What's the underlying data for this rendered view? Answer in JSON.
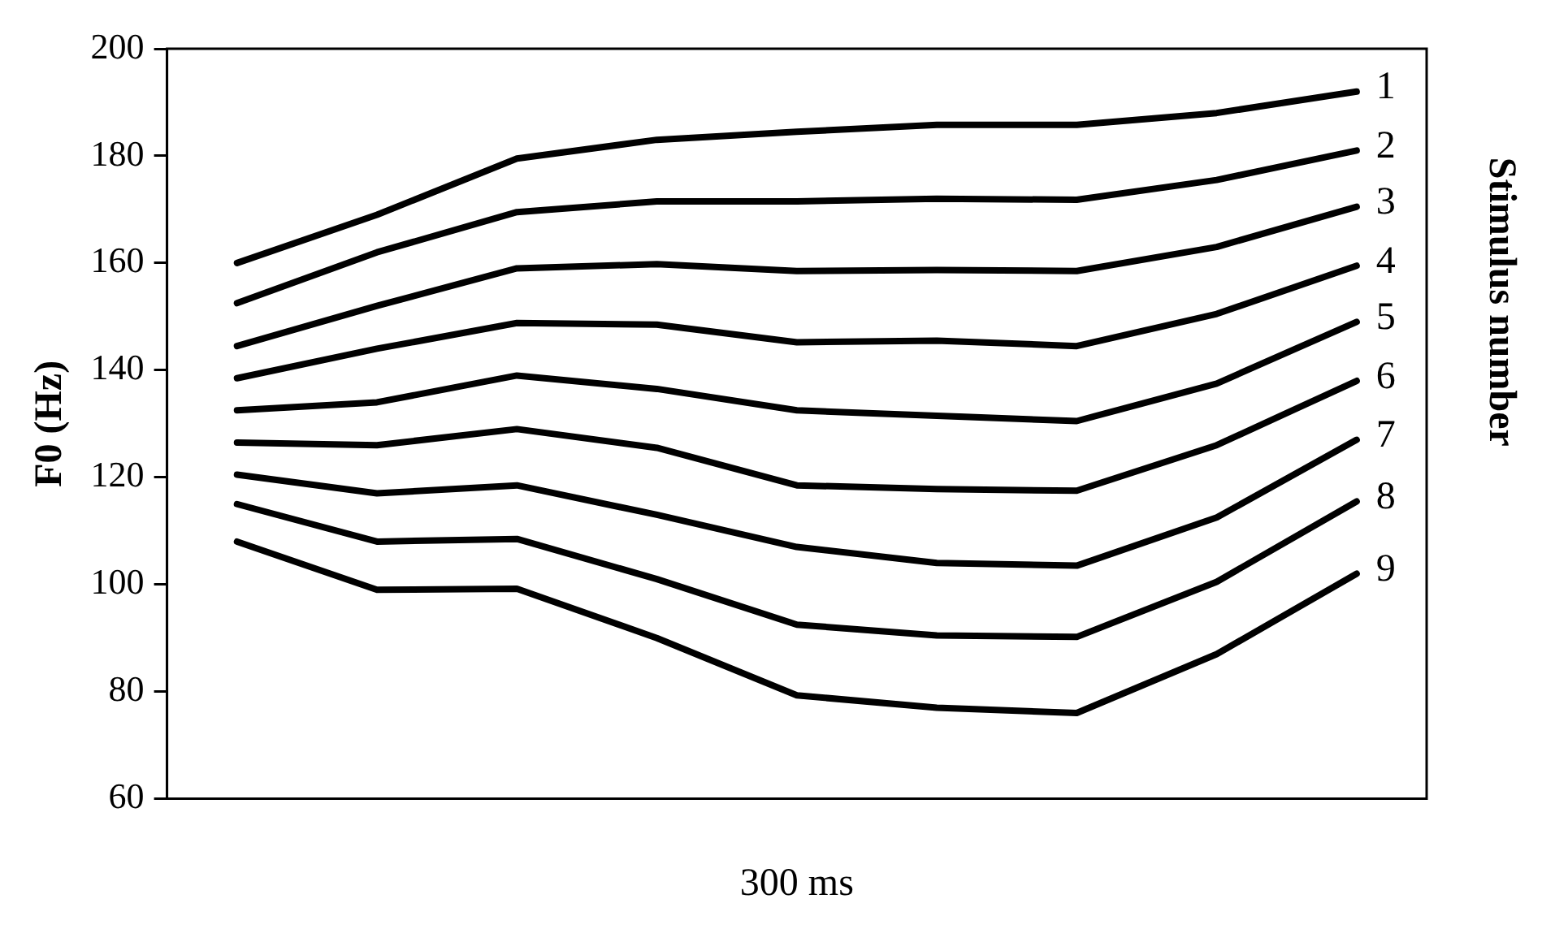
{
  "chart_data": {
    "type": "line",
    "xlabel": "300 ms",
    "ylabel": "F0 (Hz)",
    "y2label": "Stimulus number",
    "categories": [
      null,
      null,
      null,
      null,
      null,
      null,
      null,
      null,
      null
    ],
    "ylim": [
      60,
      200
    ],
    "yticks": [
      60,
      80,
      100,
      120,
      140,
      160,
      180,
      200
    ],
    "grid": false,
    "legend": false,
    "marker": "none",
    "line_style": "solid",
    "series": [
      {
        "name": "1",
        "color": "#000000",
        "values": [
          160,
          169,
          179.5,
          183,
          184.5,
          185.8,
          185.8,
          188,
          192
        ]
      },
      {
        "name": "2",
        "color": "#000000",
        "values": [
          152.5,
          162,
          169.5,
          171.5,
          171.5,
          172,
          171.8,
          175.5,
          181
        ]
      },
      {
        "name": "3",
        "color": "#000000",
        "values": [
          144.5,
          152,
          159,
          159.8,
          158.5,
          158.7,
          158.5,
          163,
          170.5
        ]
      },
      {
        "name": "4",
        "color": "#000000",
        "values": [
          138.5,
          144,
          148.8,
          148.5,
          145.2,
          145.5,
          144.5,
          150.5,
          159.5
        ]
      },
      {
        "name": "5",
        "color": "#000000",
        "values": [
          132.5,
          134,
          139,
          136.5,
          132.5,
          131.5,
          130.5,
          137.5,
          149
        ]
      },
      {
        "name": "6",
        "color": "#000000",
        "values": [
          126.5,
          126,
          129,
          125.5,
          118.5,
          117.8,
          117.5,
          126,
          138
        ]
      },
      {
        "name": "7",
        "color": "#000000",
        "values": [
          120.5,
          117,
          118.5,
          113,
          107,
          104,
          103.5,
          112.5,
          127
        ]
      },
      {
        "name": "8",
        "color": "#000000",
        "values": [
          115,
          108,
          108.5,
          101,
          92.5,
          90.5,
          90.2,
          100.5,
          115.5
        ]
      },
      {
        "name": "9",
        "color": "#000000",
        "values": [
          108,
          99,
          99.2,
          90,
          79.3,
          77,
          76,
          87,
          102
        ]
      }
    ]
  }
}
